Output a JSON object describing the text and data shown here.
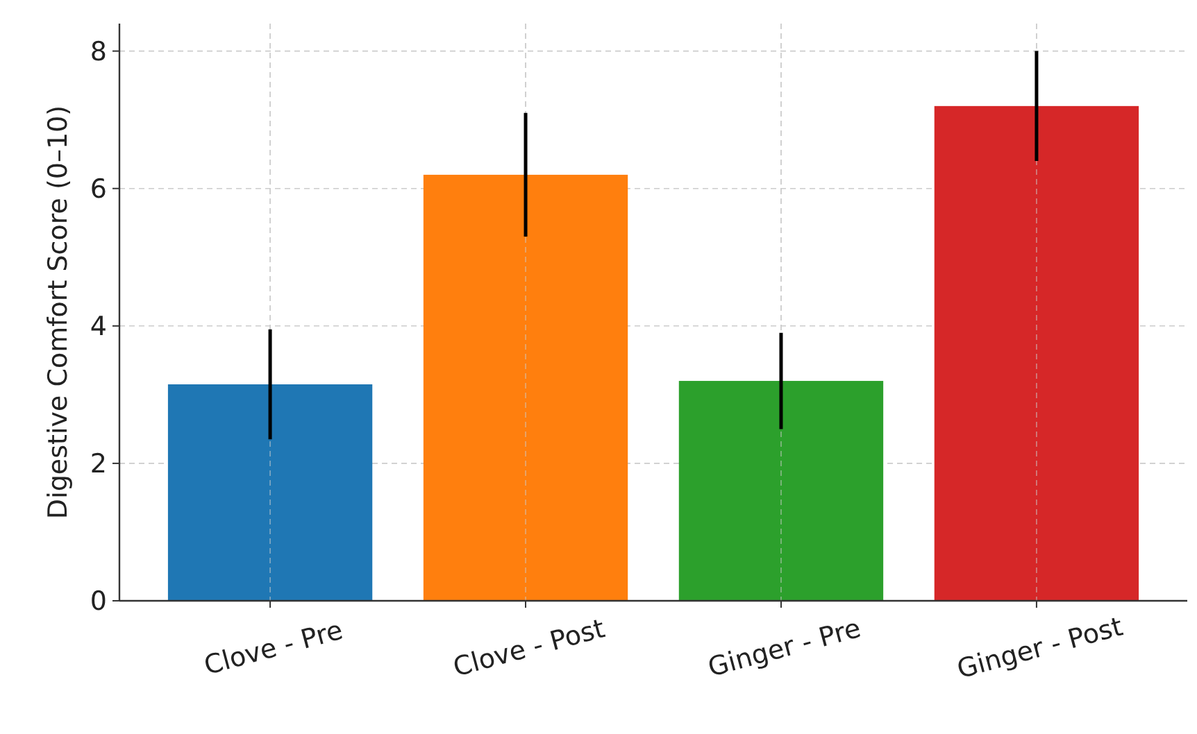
{
  "chart_data": {
    "type": "bar",
    "ylabel": "Digestive Comfort Score (0–10)",
    "categories": [
      "Clove - Pre",
      "Clove - Post",
      "Ginger - Pre",
      "Ginger - Post"
    ],
    "values": [
      3.15,
      6.2,
      3.2,
      7.2
    ],
    "colors": [
      "#1f77b4",
      "#ff7f0e",
      "#2ca02c",
      "#d62728"
    ],
    "errors": [
      0.8,
      0.9,
      0.7,
      0.8
    ],
    "ylim": [
      0,
      8.4
    ],
    "yticks": [
      0,
      2,
      4,
      6,
      8
    ],
    "grid": true
  }
}
